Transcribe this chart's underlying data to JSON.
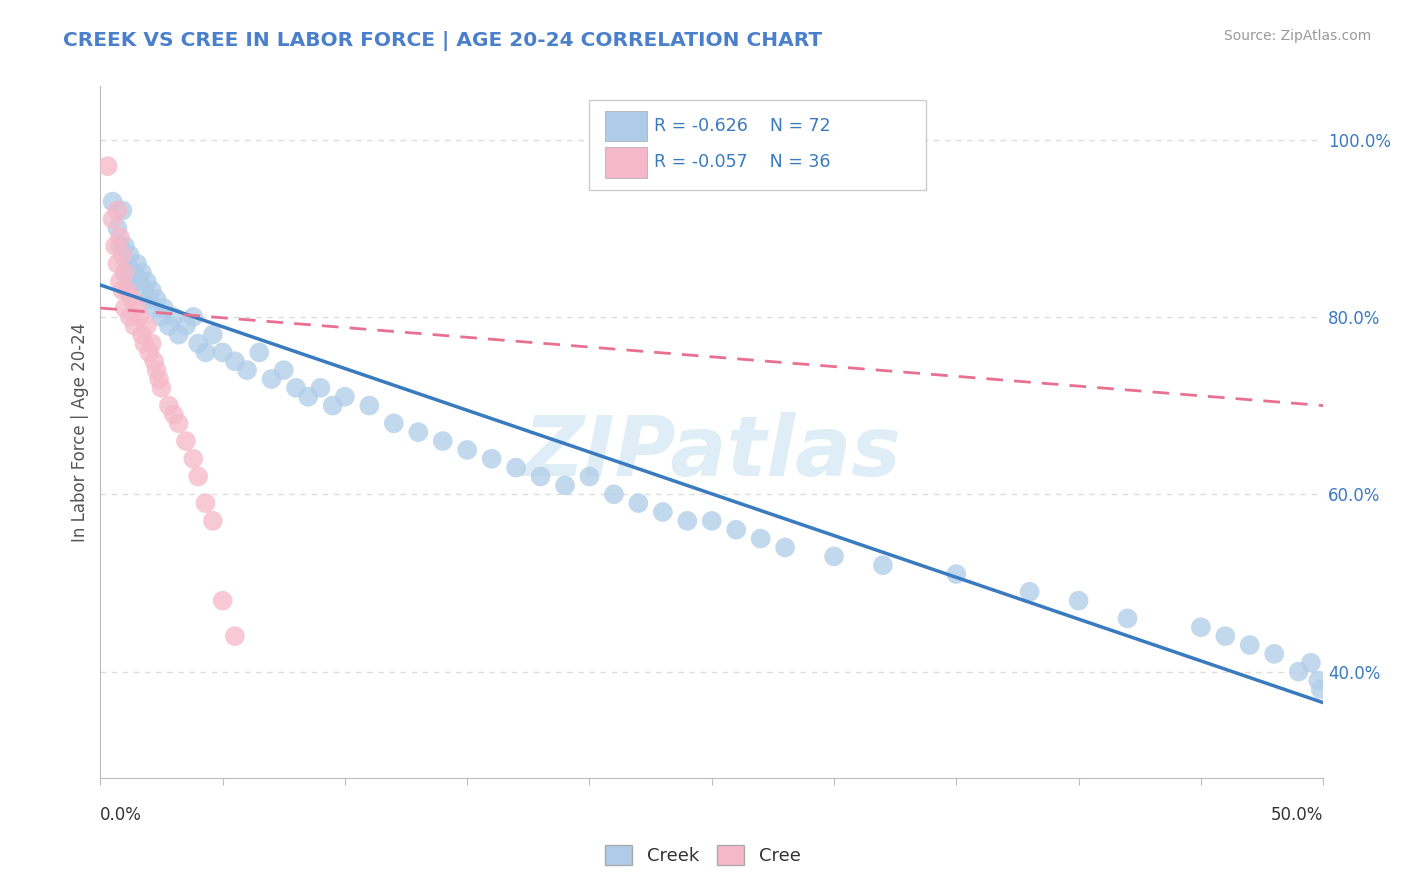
{
  "title": "CREEK VS CREE IN LABOR FORCE | AGE 20-24 CORRELATION CHART",
  "source": "Source: ZipAtlas.com",
  "ylabel": "In Labor Force | Age 20-24",
  "xlim": [
    0.0,
    0.5
  ],
  "ylim": [
    0.28,
    1.06
  ],
  "creek_R": -0.626,
  "creek_N": 72,
  "cree_R": -0.057,
  "cree_N": 36,
  "creek_color": "#aecce8",
  "cree_color": "#f5b8c8",
  "creek_line_color": "#3a7abf",
  "cree_line_color": "#e87090",
  "title_color": "#4a7fcb",
  "source_color": "#999999",
  "background_color": "#ffffff",
  "grid_color": "#dddddd",
  "legend_text_color": "#3a7abf",
  "watermark": "ZIPatlas",
  "creek_x": [
    0.005,
    0.007,
    0.008,
    0.009,
    0.01,
    0.01,
    0.011,
    0.012,
    0.013,
    0.014,
    0.015,
    0.016,
    0.017,
    0.018,
    0.019,
    0.02,
    0.021,
    0.022,
    0.023,
    0.025,
    0.026,
    0.028,
    0.03,
    0.032,
    0.035,
    0.038,
    0.04,
    0.043,
    0.046,
    0.05,
    0.055,
    0.06,
    0.065,
    0.07,
    0.075,
    0.08,
    0.085,
    0.09,
    0.095,
    0.1,
    0.11,
    0.12,
    0.13,
    0.14,
    0.15,
    0.16,
    0.17,
    0.18,
    0.19,
    0.2,
    0.21,
    0.22,
    0.23,
    0.24,
    0.25,
    0.26,
    0.27,
    0.28,
    0.3,
    0.32,
    0.35,
    0.38,
    0.4,
    0.42,
    0.45,
    0.46,
    0.47,
    0.48,
    0.49,
    0.495,
    0.498,
    0.499
  ],
  "creek_y": [
    0.93,
    0.9,
    0.88,
    0.92,
    0.88,
    0.85,
    0.86,
    0.87,
    0.84,
    0.85,
    0.86,
    0.84,
    0.85,
    0.83,
    0.84,
    0.82,
    0.83,
    0.81,
    0.82,
    0.8,
    0.81,
    0.79,
    0.8,
    0.78,
    0.79,
    0.8,
    0.77,
    0.76,
    0.78,
    0.76,
    0.75,
    0.74,
    0.76,
    0.73,
    0.74,
    0.72,
    0.71,
    0.72,
    0.7,
    0.71,
    0.7,
    0.68,
    0.67,
    0.66,
    0.65,
    0.64,
    0.63,
    0.62,
    0.61,
    0.62,
    0.6,
    0.59,
    0.58,
    0.57,
    0.57,
    0.56,
    0.55,
    0.54,
    0.53,
    0.52,
    0.51,
    0.49,
    0.48,
    0.46,
    0.45,
    0.44,
    0.43,
    0.42,
    0.4,
    0.41,
    0.39,
    0.38
  ],
  "cree_x": [
    0.003,
    0.005,
    0.006,
    0.007,
    0.007,
    0.008,
    0.008,
    0.009,
    0.009,
    0.01,
    0.01,
    0.011,
    0.012,
    0.013,
    0.014,
    0.015,
    0.016,
    0.017,
    0.018,
    0.019,
    0.02,
    0.021,
    0.022,
    0.023,
    0.024,
    0.025,
    0.028,
    0.03,
    0.032,
    0.035,
    0.038,
    0.04,
    0.043,
    0.046,
    0.05,
    0.055
  ],
  "cree_y": [
    0.97,
    0.91,
    0.88,
    0.92,
    0.86,
    0.89,
    0.84,
    0.87,
    0.83,
    0.85,
    0.81,
    0.83,
    0.8,
    0.82,
    0.79,
    0.81,
    0.8,
    0.78,
    0.77,
    0.79,
    0.76,
    0.77,
    0.75,
    0.74,
    0.73,
    0.72,
    0.7,
    0.69,
    0.68,
    0.66,
    0.64,
    0.62,
    0.59,
    0.57,
    0.48,
    0.44
  ],
  "creek_trend_x0": 0.0,
  "creek_trend_y0": 0.836,
  "creek_trend_x1": 0.5,
  "creek_trend_y1": 0.365,
  "cree_trend_x0": 0.0,
  "cree_trend_y0": 0.81,
  "cree_trend_x1": 0.5,
  "cree_trend_y1": 0.7
}
